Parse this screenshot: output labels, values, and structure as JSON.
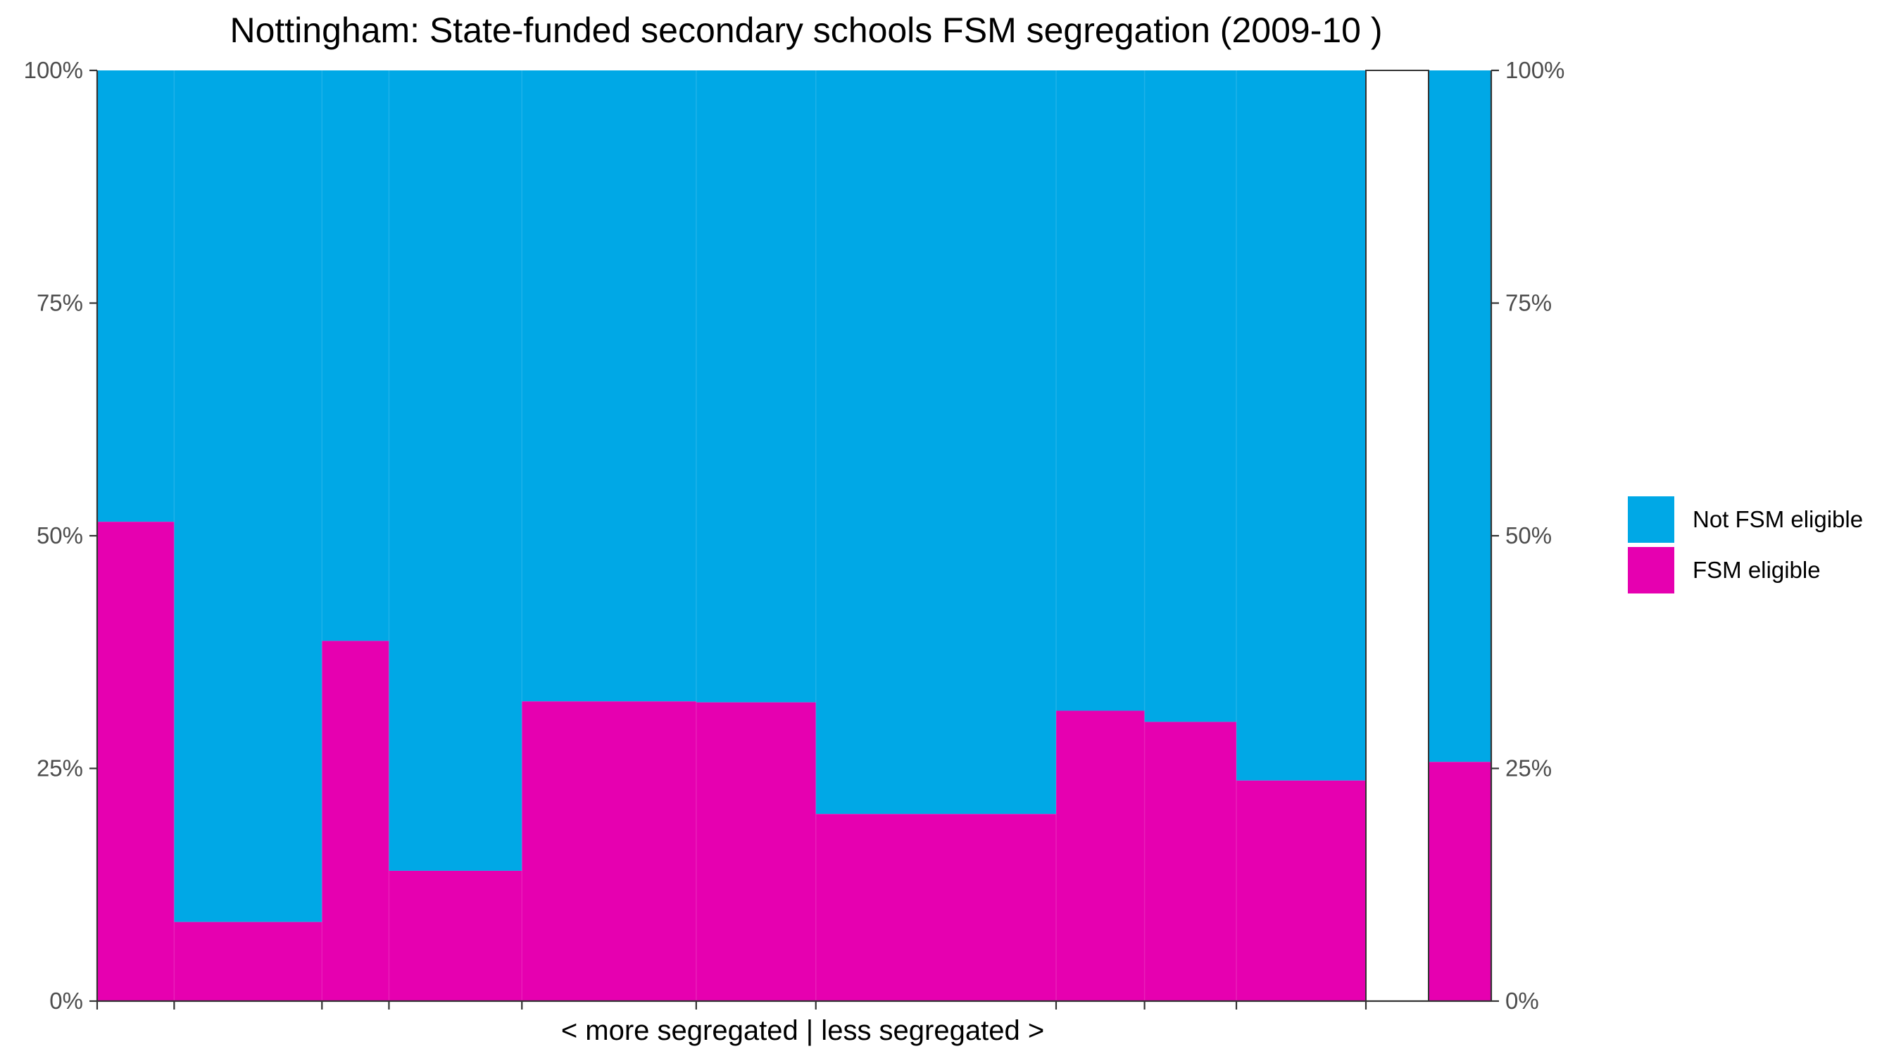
{
  "chart_data": {
    "type": "bar",
    "subtype": "variable-width stacked proportion (mosaic)",
    "title": "Nottingham: State-funded secondary schools FSM segregation (2009-10 )",
    "subtitle": "",
    "xlabel": "< more segregated | less segregated >",
    "ylabel": "",
    "ylim": [
      0,
      1
    ],
    "y_tick_labels": [
      "0%",
      "25%",
      "50%",
      "75%",
      "100%"
    ],
    "y_ticks": [
      0,
      0.25,
      0.5,
      0.75,
      1
    ],
    "grid": false,
    "legend_position": "right",
    "colors": {
      "not_fsm": "#00A8E6",
      "fsm": "#E600B0",
      "axis": "#333333",
      "tick_label": "#4d4d4d"
    },
    "series": [
      {
        "name": "Not FSM eligible",
        "color": "#00A8E6"
      },
      {
        "name": "FSM eligible",
        "color": "#E600B0"
      }
    ],
    "schools": [
      {
        "width": 0.0607,
        "fsm": 0.515
      },
      {
        "width": 0.1165,
        "fsm": 0.085
      },
      {
        "width": 0.0528,
        "fsm": 0.387
      },
      {
        "width": 0.1048,
        "fsm": 0.14
      },
      {
        "width": 0.1374,
        "fsm": 0.322
      },
      {
        "width": 0.0943,
        "fsm": 0.321
      },
      {
        "width": 0.1894,
        "fsm": 0.201
      },
      {
        "width": 0.0697,
        "fsm": 0.312
      },
      {
        "width": 0.0724,
        "fsm": 0.3
      },
      {
        "width": 0.1021,
        "fsm": 0.237
      }
    ],
    "overall": {
      "fsm": 0.257
    }
  }
}
